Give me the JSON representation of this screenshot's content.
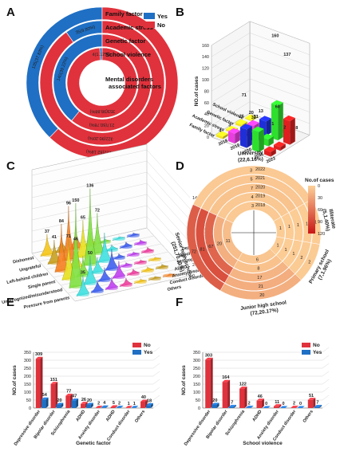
{
  "panel_labels": [
    "A",
    "B",
    "C",
    "D",
    "E",
    "F"
  ],
  "chart_data": [
    {
      "panel": "A",
      "type": "pie",
      "title": "Mental disorders associated factors",
      "legend": [
        {
          "name": "Yes",
          "color": "#1f6fc4"
        },
        {
          "name": "No",
          "color": "#e0323c"
        }
      ],
      "rings": [
        {
          "name": "Family factor",
          "yes_label": "135(37.83%)",
          "no_label": "222(62.18%)",
          "yes": 37.83
        },
        {
          "name": "Academic stress",
          "yes_label": "35(9.80%)",
          "no_label": "322(90.20%)",
          "yes": 9.8
        },
        {
          "name": "Genetic factor",
          "yes_label": "140(39.22%)",
          "no_label": "217(60.78%)",
          "yes": 39.22
        },
        {
          "name": "School violence",
          "yes_label": "4(1.12%)",
          "no_label": "353(98.88%)",
          "yes": 1.12
        }
      ]
    },
    {
      "panel": "B",
      "type": "bar",
      "ylabel": "NO.of cases",
      "years": [
        "2018",
        "2019",
        "2020",
        "2021",
        "2022"
      ],
      "factors": [
        "Family factor",
        "Academic stress",
        "Genetic factor",
        "School violence"
      ],
      "zlim": [
        0,
        160
      ],
      "zticks": [
        "0",
        "20",
        "40",
        "60",
        "80",
        "100",
        "120",
        "140",
        "160"
      ],
      "colors": [
        "#f2e420",
        "#e83ee0",
        "#1f2fd8",
        "#2ee02e",
        "#e02020"
      ],
      "values": [
        [
          4,
          17,
          32,
          35,
          8
        ],
        [
          3,
          4,
          10,
          12,
          6
        ],
        [
          4,
          10,
          25,
          60,
          41
        ],
        [
          2,
          0,
          0,
          2,
          0
        ]
      ],
      "labels": [
        "160",
        "137",
        "71",
        "51",
        "60",
        "32",
        "26",
        "20",
        "13",
        "8",
        "4",
        "3",
        "1",
        "2"
      ]
    },
    {
      "panel": "C",
      "type": "area",
      "ylabel": "NO.of cases",
      "zlim": [
        0,
        150
      ],
      "zticks": [
        "0",
        "20",
        "40",
        "60",
        "80",
        "100",
        "120",
        "140"
      ],
      "categories_left": [
        "Dishonest",
        "Ungrateful",
        "Left-behind children",
        "Single parent",
        "Unrecognized/misunderstood",
        "Pressure from parents"
      ],
      "categories_right": [
        "Depressive disorder",
        "Bipolar disorder",
        "Schizophrenia",
        "ADHD",
        "Anxiety disorder",
        "Conduct disorder",
        "Others"
      ],
      "peaks": [
        [
          37,
          26,
          36,
          22,
          6,
          4,
          5
        ],
        [
          41,
          96,
          65,
          72,
          10,
          9,
          7
        ],
        [
          84,
          46,
          136,
          51,
          8,
          5,
          8
        ],
        [
          71,
          35,
          27,
          36,
          6,
          5,
          4
        ],
        [
          150,
          50,
          23,
          29,
          9,
          7,
          6
        ],
        [
          35,
          21,
          20,
          13,
          5,
          4,
          3
        ]
      ],
      "peak_labels": [
        "37",
        "41",
        "96",
        "84",
        "46",
        "65",
        "72",
        "136",
        "150",
        "71",
        "50",
        "35"
      ],
      "colors": [
        "#f5c518",
        "#c8a020",
        "#f58020",
        "#e8e020",
        "#80e040",
        "#40e0e0",
        "#4060f0",
        "#c040f0",
        "#f040a0"
      ]
    },
    {
      "panel": "D",
      "type": "heatmap",
      "legend_title": "No.of cases",
      "scale_ticks": [
        "0",
        "30",
        "60",
        "90",
        "120"
      ],
      "years": [
        "2022",
        "2021",
        "2020",
        "2019",
        "2018"
      ],
      "groups": [
        {
          "name": "University",
          "share": "(22,6.16%)",
          "cells": [
            3,
            5,
            7,
            4,
            3
          ],
          "numbers": [
            "3",
            "5",
            "7",
            "4",
            "3"
          ]
        },
        {
          "name": "Senior high school",
          "share": "(251,70.31%)",
          "cells": [
            72,
            81,
            67,
            20,
            11
          ],
          "numbers": [
            "72",
            "81",
            "67",
            "20",
            "11"
          ]
        },
        {
          "name": "Junior high school",
          "share": "(72,20.17%)",
          "cells": [
            20,
            21,
            17,
            8,
            6
          ],
          "numbers": [
            "20",
            "21",
            "17",
            "8",
            "6"
          ]
        },
        {
          "name": "Primary school",
          "share": "(7,1.96%)",
          "cells": [
            2,
            2,
            1,
            1,
            1
          ],
          "numbers": [
            "2",
            "2",
            "1",
            "1",
            "1"
          ]
        },
        {
          "name": "Illiterate",
          "share": "(5,1.40%)",
          "cells": [
            1,
            1,
            1,
            1,
            1
          ],
          "numbers": [
            "1",
            "1",
            "1",
            "1",
            "1"
          ]
        }
      ]
    },
    {
      "panel": "E",
      "type": "bar",
      "xlabel": "Genetic factor",
      "ylabel": "NO.of cases",
      "ylim": [
        0,
        350
      ],
      "yticks": [
        "0",
        "50",
        "100",
        "150",
        "200",
        "250",
        "300",
        "350"
      ],
      "categories": [
        "Depressive disorder",
        "Bipolar disorder",
        "Schizophrenia",
        "ADHD",
        "Anxiety disorder",
        "ADHD",
        "Conduct disorder",
        "Others"
      ],
      "series": [
        {
          "name": "No",
          "color": "#e0323c",
          "values": [
            309,
            151,
            77,
            26,
            2,
            5,
            1,
            40
          ]
        },
        {
          "name": "Yes",
          "color": "#1f6fc4",
          "values": [
            54,
            20,
            47,
            20,
            4,
            2,
            1,
            18
          ]
        }
      ]
    },
    {
      "panel": "F",
      "type": "bar",
      "xlabel": "School violence",
      "ylabel": "NO.of cases",
      "ylim": [
        0,
        350
      ],
      "yticks": [
        "0",
        "50",
        "100",
        "150",
        "200",
        "250",
        "300",
        "350"
      ],
      "categories": [
        "Depressive disorder",
        "Bipolar disorder",
        "Schizophrenia",
        "ADHD",
        "Anxiety disorder",
        "Conduct disorder",
        "Others"
      ],
      "series": [
        {
          "name": "No",
          "color": "#e0323c",
          "values": [
            303,
            164,
            122,
            46,
            11,
            2,
            51
          ]
        },
        {
          "name": "Yes",
          "color": "#1f6fc4",
          "values": [
            20,
            7,
            2,
            0,
            0,
            0,
            7
          ]
        }
      ]
    }
  ]
}
